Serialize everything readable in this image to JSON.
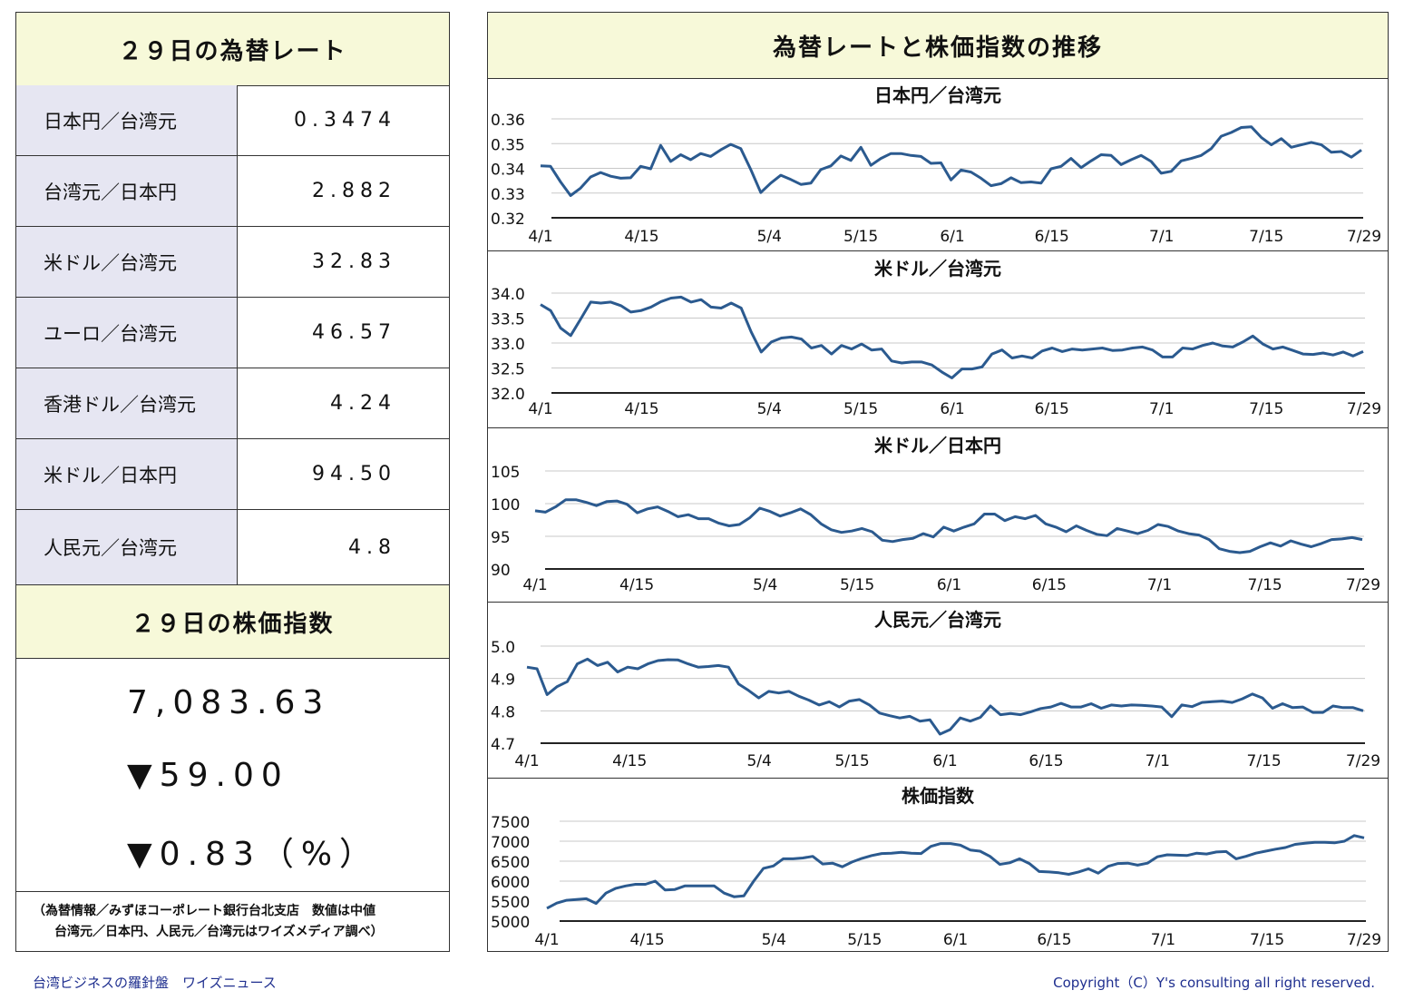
{
  "rates_panel": {
    "title": "２９日の為替レート",
    "rows": [
      {
        "label": "日本円／台湾元",
        "value": "0.3474"
      },
      {
        "label": "台湾元／日本円",
        "value": "2.882"
      },
      {
        "label": "米ドル／台湾元",
        "value": "32.83"
      },
      {
        "label": "ユーロ／台湾元",
        "value": "46.57"
      },
      {
        "label": "香港ドル／台湾元",
        "value": "4.24"
      },
      {
        "label": "米ドル／日本円",
        "value": "94.50"
      },
      {
        "label": "人民元／台湾元",
        "value": "4.8"
      }
    ]
  },
  "stock_panel": {
    "title": "２９日の株価指数",
    "index_value": "7,083.63",
    "change": "▼59.00",
    "change_pct": "▼0.83（%）"
  },
  "source_note": {
    "line1": "（為替情報／みずほコーポレート銀行台北支店　数値は中値",
    "line2": "台湾元／日本円、人民元／台湾元はワイズメディア調べ）"
  },
  "charts_panel": {
    "title": "為替レートと株価指数の推移"
  },
  "footer": {
    "left": "台湾ビジネスの羅針盤　ワイズニュース",
    "right": "Copyright（C）Y's consulting all right reserved."
  },
  "colors": {
    "line": "#2b5a8f",
    "header_bg": "#f7f9d9",
    "label_bg": "#e6e6f2",
    "footer_text": "#1f2f8f"
  },
  "chart_data": [
    {
      "type": "line",
      "title": "日本円／台湾元",
      "x_tick_labels": [
        "4/1",
        "4/15",
        "5/4",
        "5/15",
        "6/1",
        "6/15",
        "7/1",
        "7/15",
        "7/29"
      ],
      "y_ticks": [
        "0.36",
        "0.35",
        "0.34",
        "0.33",
        "0.32"
      ],
      "ylim": [
        0.32,
        0.36
      ],
      "values": [
        0.341,
        0.3408,
        0.3345,
        0.329,
        0.332,
        0.3365,
        0.3383,
        0.3368,
        0.336,
        0.3362,
        0.3408,
        0.3398,
        0.3493,
        0.3428,
        0.3455,
        0.3435,
        0.346,
        0.3448,
        0.3475,
        0.3497,
        0.348,
        0.3395,
        0.3302,
        0.334,
        0.3372,
        0.3355,
        0.3335,
        0.334,
        0.3395,
        0.341,
        0.345,
        0.3432,
        0.3485,
        0.3412,
        0.344,
        0.346,
        0.346,
        0.3452,
        0.3448,
        0.342,
        0.3422,
        0.3353,
        0.3393,
        0.3385,
        0.336,
        0.333,
        0.3338,
        0.3362,
        0.3342,
        0.3345,
        0.334,
        0.3398,
        0.3408,
        0.344,
        0.3403,
        0.343,
        0.3455,
        0.3452,
        0.3415,
        0.3435,
        0.3452,
        0.3428,
        0.338,
        0.3388,
        0.343,
        0.344,
        0.3452,
        0.348,
        0.353,
        0.3545,
        0.3565,
        0.3568,
        0.3525,
        0.3495,
        0.352,
        0.3485,
        0.3495,
        0.3505,
        0.3495,
        0.3465,
        0.3468,
        0.3445,
        0.3474
      ]
    },
    {
      "type": "line",
      "title": "米ドル／台湾元",
      "x_tick_labels": [
        "4/1",
        "4/15",
        "5/4",
        "5/15",
        "6/1",
        "6/15",
        "7/1",
        "7/15",
        "7/29"
      ],
      "y_ticks": [
        "34.0",
        "33.5",
        "33.0",
        "32.5",
        "32.0"
      ],
      "ylim": [
        32.0,
        34.0
      ],
      "values": [
        33.77,
        33.65,
        33.3,
        33.15,
        33.48,
        33.82,
        33.8,
        33.82,
        33.75,
        33.62,
        33.65,
        33.72,
        33.83,
        33.9,
        33.92,
        33.82,
        33.87,
        33.72,
        33.7,
        33.8,
        33.7,
        33.22,
        32.82,
        33.02,
        33.1,
        33.12,
        33.08,
        32.9,
        32.95,
        32.78,
        32.95,
        32.88,
        32.98,
        32.86,
        32.88,
        32.64,
        32.6,
        32.62,
        32.62,
        32.56,
        32.42,
        32.3,
        32.48,
        32.48,
        32.52,
        32.78,
        32.86,
        32.7,
        32.74,
        32.7,
        32.84,
        32.9,
        32.83,
        32.88,
        32.86,
        32.88,
        32.9,
        32.85,
        32.86,
        32.9,
        32.92,
        32.86,
        32.72,
        32.72,
        32.9,
        32.88,
        32.95,
        33.0,
        32.94,
        32.92,
        33.02,
        33.14,
        32.98,
        32.88,
        32.92,
        32.85,
        32.78,
        32.77,
        32.8,
        32.76,
        32.82,
        32.74,
        32.83
      ]
    },
    {
      "type": "line",
      "title": "米ドル／日本円",
      "x_tick_labels": [
        "4/1",
        "4/15",
        "5/4",
        "5/15",
        "6/1",
        "6/15",
        "7/1",
        "7/15",
        "7/29"
      ],
      "y_ticks": [
        "105",
        "100",
        "95",
        "90"
      ],
      "ylim": [
        90,
        105
      ],
      "values": [
        98.9,
        98.7,
        99.5,
        100.6,
        100.6,
        100.2,
        99.7,
        100.3,
        100.4,
        99.9,
        98.6,
        99.2,
        99.5,
        98.8,
        98.0,
        98.3,
        97.7,
        97.7,
        97.0,
        96.6,
        96.8,
        97.8,
        99.3,
        98.8,
        98.1,
        98.6,
        99.2,
        98.3,
        96.9,
        96.0,
        95.6,
        95.8,
        96.2,
        95.7,
        94.4,
        94.2,
        94.5,
        94.7,
        95.4,
        94.9,
        96.4,
        95.8,
        96.4,
        96.9,
        98.4,
        98.4,
        97.4,
        98.0,
        97.7,
        98.2,
        96.9,
        96.4,
        95.7,
        96.6,
        95.9,
        95.3,
        95.1,
        96.2,
        95.8,
        95.4,
        95.9,
        96.8,
        96.5,
        95.8,
        95.4,
        95.2,
        94.5,
        93.1,
        92.7,
        92.5,
        92.7,
        93.4,
        94.0,
        93.5,
        94.3,
        93.8,
        93.4,
        93.9,
        94.5,
        94.6,
        94.8,
        94.5
      ]
    },
    {
      "type": "line",
      "title": "人民元／台湾元",
      "x_tick_labels": [
        "4/1",
        "4/15",
        "5/4",
        "5/15",
        "6/1",
        "6/15",
        "7/1",
        "7/15",
        "7/29"
      ],
      "y_ticks": [
        "5.0",
        "4.9",
        "4.8",
        "4.7"
      ],
      "ylim": [
        4.7,
        5.0
      ],
      "values": [
        4.935,
        4.93,
        4.85,
        4.875,
        4.89,
        4.945,
        4.96,
        4.94,
        4.95,
        4.92,
        4.935,
        4.93,
        4.945,
        4.955,
        4.958,
        4.957,
        4.945,
        4.935,
        4.937,
        4.94,
        4.935,
        4.883,
        4.863,
        4.84,
        4.86,
        4.855,
        4.86,
        4.845,
        4.833,
        4.818,
        4.828,
        4.812,
        4.83,
        4.835,
        4.818,
        4.793,
        4.785,
        4.778,
        4.783,
        4.768,
        4.772,
        4.728,
        4.742,
        4.778,
        4.768,
        4.78,
        4.815,
        4.788,
        4.792,
        4.788,
        4.797,
        4.807,
        4.812,
        4.823,
        4.812,
        4.812,
        4.822,
        4.808,
        4.818,
        4.815,
        4.818,
        4.817,
        4.815,
        4.812,
        4.782,
        4.818,
        4.813,
        4.826,
        4.828,
        4.83,
        4.826,
        4.837,
        4.852,
        4.84,
        4.808,
        4.822,
        4.81,
        4.812,
        4.795,
        4.795,
        4.815,
        4.81,
        4.81,
        4.8
      ]
    },
    {
      "type": "line",
      "title": "株価指数",
      "x_tick_labels": [
        "4/1",
        "4/15",
        "5/4",
        "5/15",
        "6/1",
        "6/15",
        "7/1",
        "7/15",
        "7/29"
      ],
      "y_ticks": [
        "7500",
        "7000",
        "6500",
        "6000",
        "5500",
        "5000"
      ],
      "ylim": [
        5000,
        7500
      ],
      "values": [
        5320,
        5450,
        5520,
        5540,
        5560,
        5440,
        5700,
        5820,
        5880,
        5920,
        5920,
        6000,
        5780,
        5790,
        5880,
        5880,
        5880,
        5880,
        5700,
        5610,
        5630,
        6000,
        6320,
        6380,
        6560,
        6560,
        6580,
        6620,
        6430,
        6450,
        6360,
        6480,
        6570,
        6640,
        6690,
        6700,
        6720,
        6700,
        6690,
        6870,
        6940,
        6940,
        6900,
        6780,
        6750,
        6620,
        6420,
        6460,
        6560,
        6440,
        6240,
        6230,
        6210,
        6170,
        6230,
        6310,
        6200,
        6370,
        6440,
        6450,
        6400,
        6450,
        6610,
        6660,
        6650,
        6640,
        6700,
        6680,
        6730,
        6740,
        6560,
        6620,
        6700,
        6750,
        6800,
        6840,
        6920,
        6950,
        6970,
        6970,
        6960,
        7000,
        7140,
        7084
      ]
    }
  ]
}
